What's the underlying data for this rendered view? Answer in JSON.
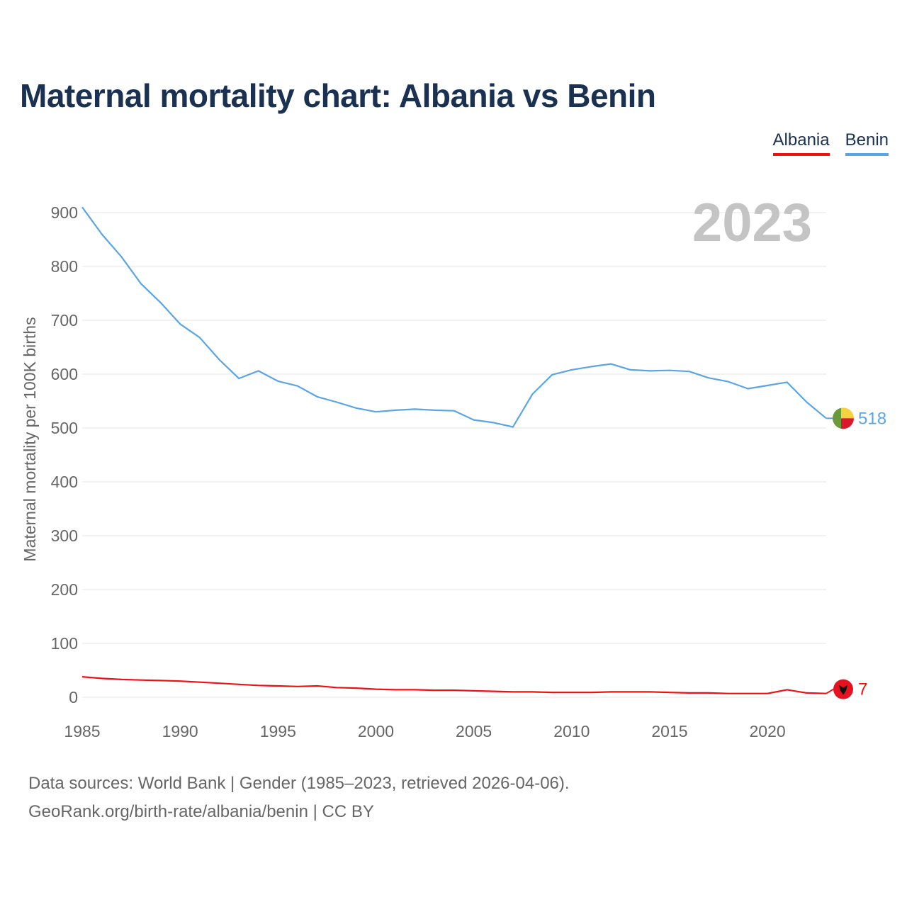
{
  "title": "Maternal mortality chart: Albania vs Benin",
  "legend": {
    "albania": "Albania",
    "benin": "Benin"
  },
  "colors": {
    "albania": "#ee1111",
    "benin": "#5aa5e6",
    "title": "#1a3151",
    "year_watermark": "#c4c4c4",
    "grid": "#e6e6e6",
    "axis_text": "#666666"
  },
  "source": {
    "line1": "Data sources: World Bank | Gender (1985–2023, retrieved 2026-04-06).",
    "line2": "GeoRank.org/birth-rate/albania/benin | CC BY"
  },
  "chart_data": {
    "type": "line",
    "title": "Maternal mortality chart: Albania vs Benin",
    "xlabel": "",
    "ylabel": "Maternal mortality per 100K births",
    "year_label": "2023",
    "xlim": [
      1985,
      2023
    ],
    "ylim": [
      0,
      900
    ],
    "x_ticks": [
      1985,
      1990,
      1995,
      2000,
      2005,
      2010,
      2015,
      2020
    ],
    "y_ticks": [
      0,
      100,
      200,
      300,
      400,
      500,
      600,
      700,
      800,
      900
    ],
    "grid": true,
    "legend_position": "top-right",
    "x": [
      1985,
      1986,
      1987,
      1988,
      1989,
      1990,
      1991,
      1992,
      1993,
      1994,
      1995,
      1996,
      1997,
      1998,
      1999,
      2000,
      2001,
      2002,
      2003,
      2004,
      2005,
      2006,
      2007,
      2008,
      2009,
      2010,
      2011,
      2012,
      2013,
      2014,
      2015,
      2016,
      2017,
      2018,
      2019,
      2020,
      2021,
      2022,
      2023
    ],
    "series": [
      {
        "name": "Benin",
        "color": "#5aa5e6",
        "end_label": "518",
        "flag": "benin-flag",
        "values": [
          910,
          860,
          818,
          768,
          733,
          693,
          668,
          627,
          592,
          606,
          587,
          578,
          558,
          548,
          537,
          530,
          533,
          535,
          533,
          532,
          515,
          510,
          502,
          563,
          599,
          608,
          614,
          619,
          608,
          606,
          607,
          605,
          593,
          586,
          573,
          579,
          585,
          548,
          518
        ]
      },
      {
        "name": "Albania",
        "color": "#ee1111",
        "end_label": "7",
        "flag": "albania-flag",
        "values": [
          38,
          35,
          33,
          32,
          31,
          30,
          28,
          26,
          24,
          22,
          21,
          20,
          21,
          18,
          17,
          15,
          14,
          14,
          13,
          13,
          12,
          11,
          10,
          10,
          9,
          9,
          9,
          10,
          10,
          10,
          9,
          8,
          8,
          7,
          7,
          7,
          14,
          8,
          7
        ]
      }
    ]
  }
}
